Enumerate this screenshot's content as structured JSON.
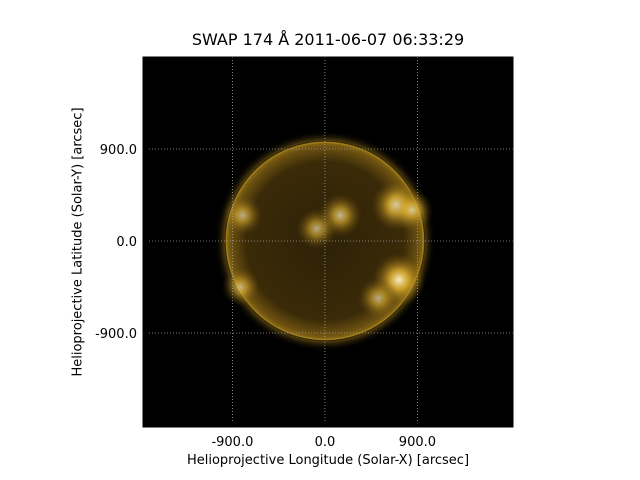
{
  "chart_data": {
    "type": "heatmap",
    "title": "SWAP 174 Å 2011-06-07 06:33:29",
    "xlabel": "Helioprojective Longitude (Solar-X) [arcsec]",
    "ylabel": "Helioprojective Latitude (Solar-Y) [arcsec]",
    "xlim": [
      -1770,
      1830
    ],
    "ylim": [
      -1820,
      1800
    ],
    "xticks": [
      -900.0,
      0.0,
      900.0
    ],
    "yticks": [
      900.0,
      0.0,
      -900.0
    ],
    "xtick_labels": [
      "-900.0",
      "0.0",
      "900.0"
    ],
    "ytick_labels": [
      "900.0",
      "0.0",
      "-900.0"
    ],
    "grid": true,
    "colormap": "black-to-gold (SDO AIA 171 style)",
    "colors": {
      "background": "#000000",
      "disk": "#3a2a08",
      "limb": "#b08a1c",
      "bright": "#fff3c0",
      "grid": "#a0a0a0"
    },
    "solar_disk": {
      "center": [
        0,
        0
      ],
      "radius": 960
    },
    "active_regions": [
      {
        "x": 700,
        "y": 350,
        "intensity": 0.9
      },
      {
        "x": 720,
        "y": -380,
        "intensity": 1.0
      },
      {
        "x": 150,
        "y": 250,
        "intensity": 0.6
      },
      {
        "x": -80,
        "y": 120,
        "intensity": 0.5
      },
      {
        "x": -800,
        "y": 250,
        "intensity": 0.45
      },
      {
        "x": -820,
        "y": -450,
        "intensity": 0.4
      },
      {
        "x": 520,
        "y": -560,
        "intensity": 0.5
      },
      {
        "x": 850,
        "y": 300,
        "intensity": 0.55
      }
    ]
  }
}
